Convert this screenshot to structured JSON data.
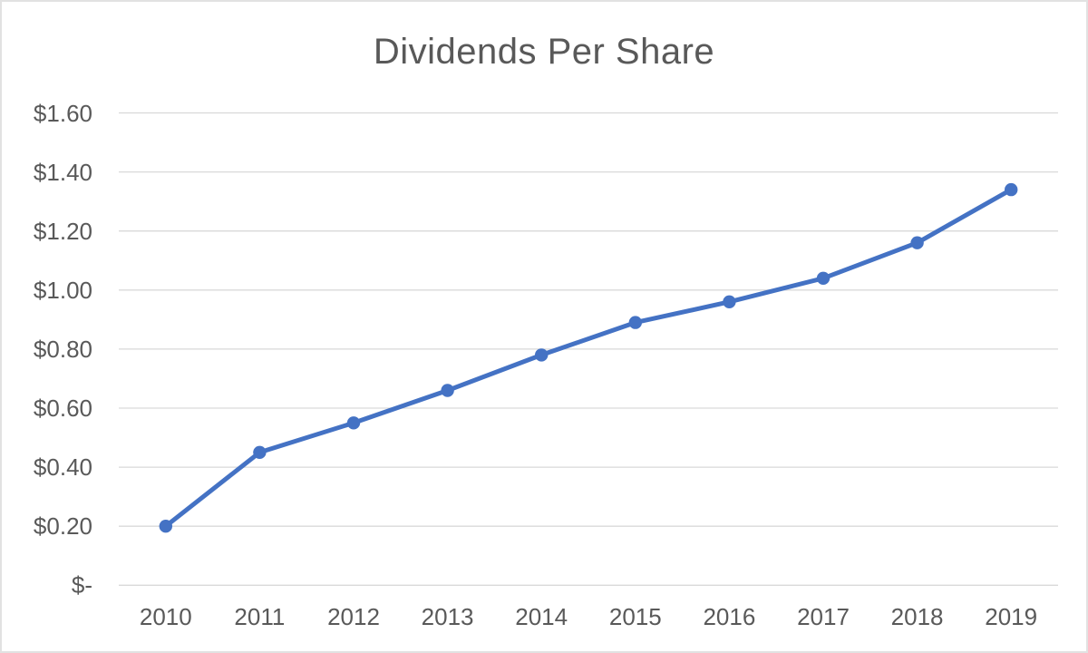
{
  "chart_data": {
    "type": "line",
    "title": "Dividends Per Share",
    "x": [
      "2010",
      "2011",
      "2012",
      "2013",
      "2014",
      "2015",
      "2016",
      "2017",
      "2018",
      "2019"
    ],
    "series": [
      {
        "name": "Dividends Per Share",
        "values": [
          0.2,
          0.45,
          0.55,
          0.66,
          0.78,
          0.89,
          0.96,
          1.04,
          1.16,
          1.34
        ]
      }
    ],
    "xlabel": "",
    "ylabel": "",
    "ylim": [
      0,
      1.6
    ],
    "y_ticks": [
      {
        "value": 1.6,
        "label": "$1.60"
      },
      {
        "value": 1.4,
        "label": "$1.40"
      },
      {
        "value": 1.2,
        "label": "$1.20"
      },
      {
        "value": 1.0,
        "label": "$1.00"
      },
      {
        "value": 0.8,
        "label": "$0.80"
      },
      {
        "value": 0.6,
        "label": "$0.60"
      },
      {
        "value": 0.4,
        "label": "$0.40"
      },
      {
        "value": 0.2,
        "label": "$0.20"
      },
      {
        "value": 0.0,
        "label": "$-"
      }
    ],
    "grid": "horizontal",
    "legend_position": "none",
    "marker": "circle"
  },
  "colors": {
    "line": "#4472C4",
    "marker": "#4472C4",
    "gridline": "#D9D9D9",
    "text": "#595959",
    "border": "#E2E2E2",
    "background": "#FFFFFF"
  }
}
